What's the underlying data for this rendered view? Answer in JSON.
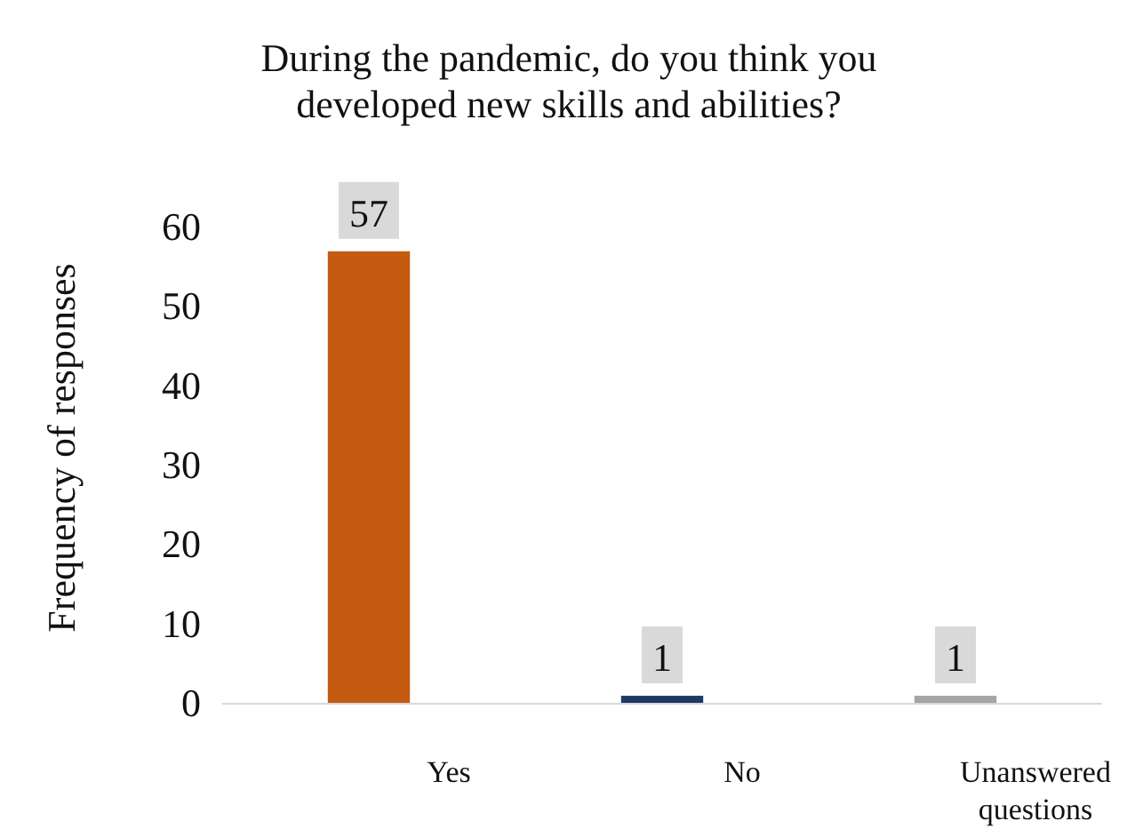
{
  "chart_data": {
    "type": "bar",
    "title": "During the pandemic, do you think you developed new skills and abilities?",
    "ylabel": "Frequency of responses",
    "categories": [
      "Yes",
      "No",
      "Unanswered questions"
    ],
    "values": [
      57,
      1,
      1
    ],
    "colors": [
      "#c55a11",
      "#203864",
      "#a5a5a5"
    ],
    "ylim": [
      0,
      60
    ],
    "yticks": [
      0,
      10,
      20,
      30,
      40,
      50,
      60
    ],
    "data_labels": true,
    "grid": false
  }
}
